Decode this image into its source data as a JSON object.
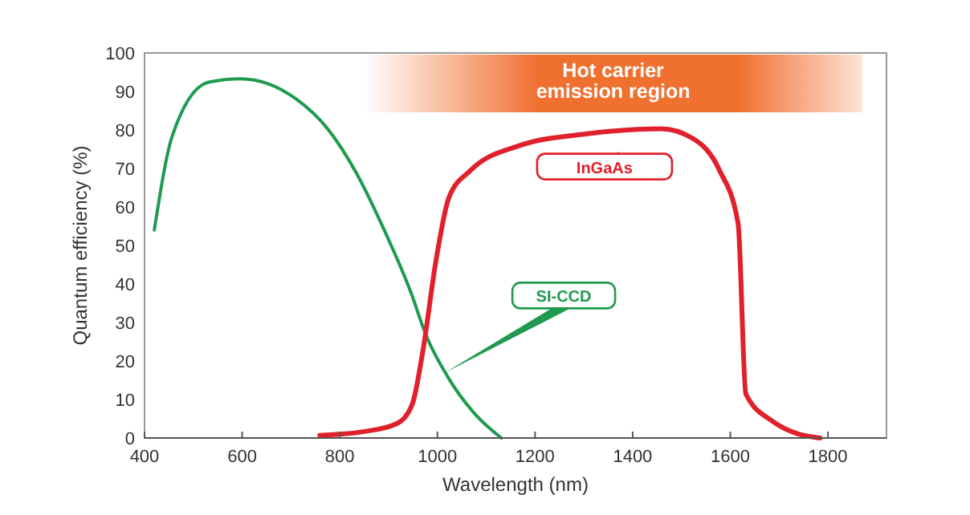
{
  "chart_data": {
    "type": "line",
    "xlabel": "Wavelength (nm)",
    "ylabel": "Quantum efficiency (%)",
    "xlim": [
      400,
      1920
    ],
    "ylim": [
      0,
      100
    ],
    "xticks": [
      400,
      600,
      800,
      1000,
      1200,
      1400,
      1600,
      1800
    ],
    "yticks": [
      0,
      10,
      20,
      30,
      40,
      50,
      60,
      70,
      80,
      90,
      100
    ],
    "grid": false,
    "marker": "none",
    "line_style": "solid",
    "bands": [
      {
        "axis": "x",
        "from": 850,
        "to": 1870,
        "label": "Hot carrier\nemission region",
        "color": "#f07030"
      }
    ],
    "series": [
      {
        "name": "SI-CCD",
        "color": "#1f9a4e",
        "x": [
          420,
          457,
          531,
          597,
          709,
          777,
          834,
          890,
          946,
          977,
          1023,
          1080,
          1131
        ],
        "values": [
          54,
          78.5,
          92.4,
          93.3,
          88.2,
          80,
          68.8,
          54.3,
          37.7,
          26.6,
          15.5,
          5.8,
          0
        ]
      },
      {
        "name": "InGaAs",
        "color": "#e0202a",
        "x": [
          759,
          851,
          916,
          948,
          970,
          997,
          1024,
          1068,
          1165,
          1307,
          1458,
          1523,
          1578,
          1616,
          1632,
          1686,
          1740,
          1784
        ],
        "values": [
          0.7,
          1.7,
          3.7,
          8.6,
          22.4,
          46,
          62.6,
          69.5,
          75.8,
          79,
          80.3,
          77.8,
          69.5,
          55.7,
          11.4,
          4.4,
          1,
          0
        ]
      }
    ]
  }
}
